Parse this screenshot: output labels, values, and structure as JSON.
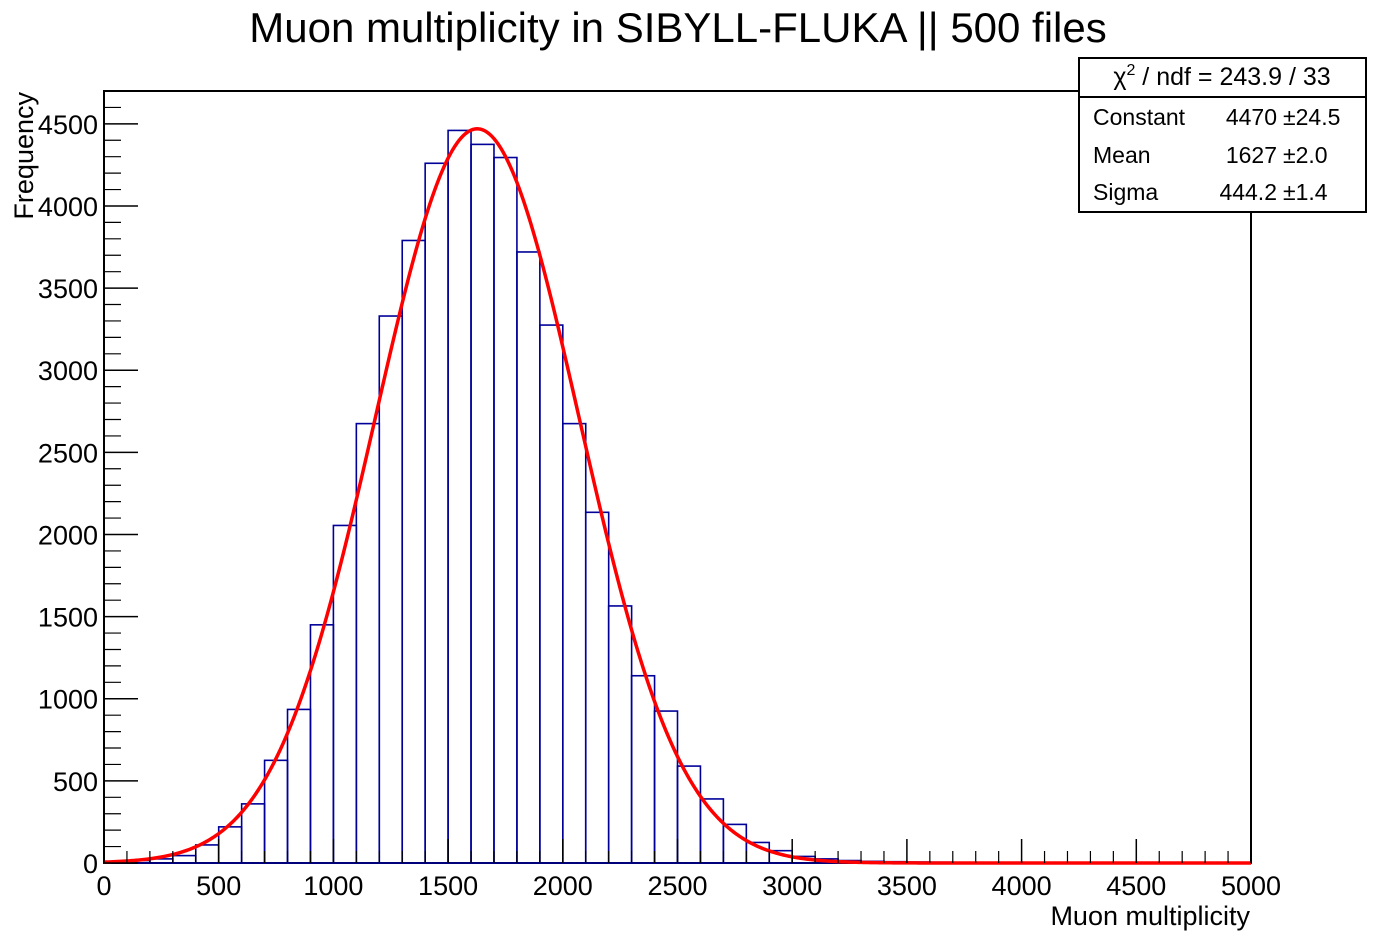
{
  "chart_data": {
    "type": "bar",
    "title": "Muon multiplicity in SIBYLL-FLUKA || 500 files",
    "xlabel": "Muon multiplicity",
    "ylabel": "Frequency",
    "xlim": [
      0,
      5000
    ],
    "ylim": [
      0,
      4700
    ],
    "x_ticks": [
      0,
      500,
      1000,
      1500,
      2000,
      2500,
      3000,
      3500,
      4000,
      4500,
      5000
    ],
    "y_ticks": [
      0,
      500,
      1000,
      1500,
      2000,
      2500,
      3000,
      3500,
      4000,
      4500
    ],
    "bin_width": 100,
    "bin_edges_start": 0,
    "series": [
      {
        "name": "histogram",
        "color": "#000099",
        "values": [
          5,
          15,
          25,
          45,
          110,
          220,
          360,
          625,
          935,
          1450,
          2055,
          2675,
          3330,
          3790,
          4260,
          4460,
          4375,
          4295,
          3720,
          3275,
          2675,
          2135,
          1565,
          1140,
          925,
          590,
          390,
          235,
          125,
          75,
          40,
          25,
          15,
          10,
          8,
          6,
          5,
          4,
          3,
          3,
          2,
          2,
          2,
          1,
          1,
          1,
          1,
          1,
          1,
          1
        ]
      }
    ],
    "fit": {
      "name": "gaus",
      "color": "#ff0000",
      "constant": 4470,
      "mean": 1627,
      "sigma": 444.2
    },
    "stats_box": {
      "header": {
        "chi_symbol": "χ",
        "sup": "2",
        "rest": " / ndf = 243.9 / 33"
      },
      "rows": [
        {
          "label": "Constant",
          "value": "4470",
          "error": "±24.5"
        },
        {
          "label": "Mean",
          "value": "1627",
          "error": "±2.0"
        },
        {
          "label": "Sigma",
          "value": "444.2",
          "error": "±1.4"
        }
      ]
    }
  }
}
